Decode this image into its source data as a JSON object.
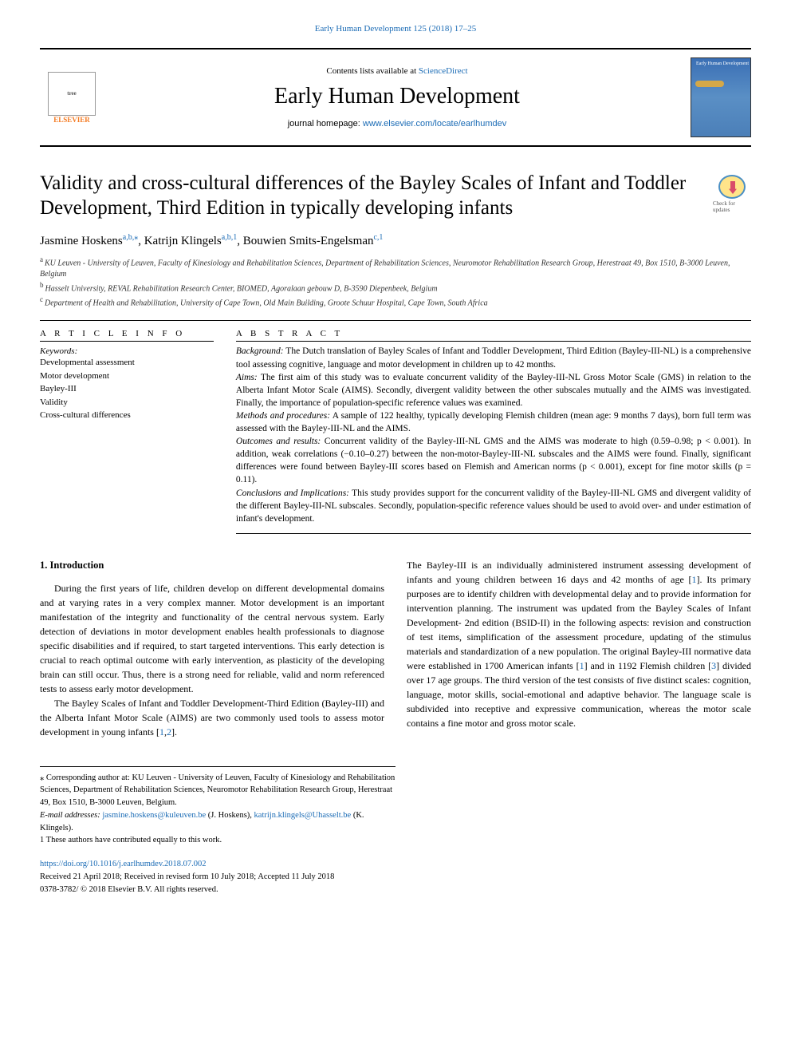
{
  "header": {
    "top_citation": "Early Human Development 125 (2018) 17–25",
    "contents_label": "Contents lists available at ",
    "contents_link": "ScienceDirect",
    "journal_name": "Early Human Development",
    "homepage_label": "journal homepage: ",
    "homepage_url": "www.elsevier.com/locate/earlhumdev",
    "publisher": "ELSEVIER",
    "updates_label": "Check for updates",
    "cover_text": "Early Human Development"
  },
  "article": {
    "title": "Validity and cross-cultural differences of the Bayley Scales of Infant and Toddler Development, Third Edition in typically developing infants",
    "authors": [
      {
        "name": "Jasmine Hoskens",
        "marks": "a,b,⁎"
      },
      {
        "name": "Katrijn Klingels",
        "marks": "a,b,1"
      },
      {
        "name": "Bouwien Smits-Engelsman",
        "marks": "c,1"
      }
    ],
    "affiliations": [
      {
        "label": "a",
        "text": "KU Leuven - University of Leuven, Faculty of Kinesiology and Rehabilitation Sciences, Department of Rehabilitation Sciences, Neuromotor Rehabilitation Research Group, Herestraat 49, Box 1510, B-3000 Leuven, Belgium"
      },
      {
        "label": "b",
        "text": "Hasselt University, REVAL Rehabilitation Research Center, BIOMED, Agoralaan gebouw D, B-3590 Diepenbeek, Belgium"
      },
      {
        "label": "c",
        "text": "Department of Health and Rehabilitation, University of Cape Town, Old Main Building, Groote Schuur Hospital, Cape Town, South Africa"
      }
    ]
  },
  "info": {
    "heading": "A R T I C L E  I N F O",
    "keywords_heading": "Keywords:",
    "keywords": [
      "Developmental assessment",
      "Motor development",
      "Bayley-III",
      "Validity",
      "Cross-cultural differences"
    ]
  },
  "abstract": {
    "heading": "A B S T R A C T",
    "sections": [
      {
        "label": "Background:",
        "text": " The Dutch translation of Bayley Scales of Infant and Toddler Development, Third Edition (Bayley-III-NL) is a comprehensive tool assessing cognitive, language and motor development in children up to 42 months."
      },
      {
        "label": "Aims:",
        "text": " The first aim of this study was to evaluate concurrent validity of the Bayley-III-NL Gross Motor Scale (GMS) in relation to the Alberta Infant Motor Scale (AIMS). Secondly, divergent validity between the other subscales mutually and the AIMS was investigated. Finally, the importance of population-specific reference values was examined."
      },
      {
        "label": "Methods and procedures:",
        "text": " A sample of 122 healthy, typically developing Flemish children (mean age: 9 months 7 days), born full term was assessed with the Bayley-III-NL and the AIMS."
      },
      {
        "label": "Outcomes and results:",
        "text": " Concurrent validity of the Bayley-III-NL GMS and the AIMS was moderate to high (0.59–0.98; p < 0.001). In addition, weak correlations (−0.10–0.27) between the non-motor-Bayley-III-NL subscales and the AIMS were found. Finally, significant differences were found between Bayley-III scores based on Flemish and American norms (p < 0.001), except for fine motor skills (p = 0.11)."
      },
      {
        "label": "Conclusions and Implications:",
        "text": " This study provides support for the concurrent validity of the Bayley-III-NL GMS and divergent validity of the different Bayley-III-NL subscales. Secondly, population-specific reference values should be used to avoid over- and under estimation of infant's development."
      }
    ]
  },
  "body": {
    "heading": "1. Introduction",
    "col1": [
      "During the first years of life, children develop on different developmental domains and at varying rates in a very complex manner. Motor development is an important manifestation of the integrity and functionality of the central nervous system. Early detection of deviations in motor development enables health professionals to diagnose specific disabilities and if required, to start targeted interventions. This early detection is crucial to reach optimal outcome with early intervention, as plasticity of the developing brain can still occur. Thus, there is a strong need for reliable, valid and norm referenced tests to assess early motor development.",
      "The Bayley Scales of Infant and Toddler Development-Third Edition (Bayley-III) and the Alberta Infant Motor Scale (AIMS) are two commonly used tools to assess motor development in young infants [1,2]."
    ],
    "col2": [
      "The Bayley-III is an individually administered instrument assessing development of infants and young children between 16 days and 42 months of age [1]. Its primary purposes are to identify children with developmental delay and to provide information for intervention planning. The instrument was updated from the Bayley Scales of Infant Development- 2nd edition (BSID-II) in the following aspects: revision and construction of test items, simplification of the assessment procedure, updating of the stimulus materials and standardization of a new population. The original Bayley-III normative data were established in 1700 American infants [1] and in 1192 Flemish children [3] divided over 17 age groups. The third version of the test consists of five distinct scales: cognition, language, motor skills, social-emotional and adaptive behavior. The language scale is subdivided into receptive and expressive communication, whereas the motor scale contains a fine motor and gross motor scale."
    ],
    "refs": {
      "r1": "1",
      "r2": "2",
      "r3": "3",
      "r12": "1,2"
    }
  },
  "footnotes": {
    "corresponding": "⁎ Corresponding author at: KU Leuven - University of Leuven, Faculty of Kinesiology and Rehabilitation Sciences, Department of Rehabilitation Sciences, Neuromotor Rehabilitation Research Group, Herestraat 49, Box 1510, B-3000 Leuven, Belgium.",
    "email_label": "E-mail addresses: ",
    "emails": [
      {
        "addr": "jasmine.hoskens@kuleuven.be",
        "who": " (J. Hoskens), "
      },
      {
        "addr": "katrijn.klingels@Uhasselt.be",
        "who": " (K. Klingels)."
      }
    ],
    "equal": "1 These authors have contributed equally to this work."
  },
  "footer": {
    "doi": "https://doi.org/10.1016/j.earlhumdev.2018.07.002",
    "history": "Received 21 April 2018; Received in revised form 10 July 2018; Accepted 11 July 2018",
    "issn_copyright": "0378-3782/ © 2018 Elsevier B.V. All rights reserved."
  },
  "colors": {
    "link": "#1a6bb5",
    "elsevier": "#f47920",
    "text": "#000000",
    "rule": "#000000"
  },
  "typography": {
    "title_pt": 25,
    "journal_pt": 28,
    "body_pt": 12,
    "abstract_pt": 11.5,
    "affil_pt": 10,
    "footnote_pt": 10.5
  }
}
